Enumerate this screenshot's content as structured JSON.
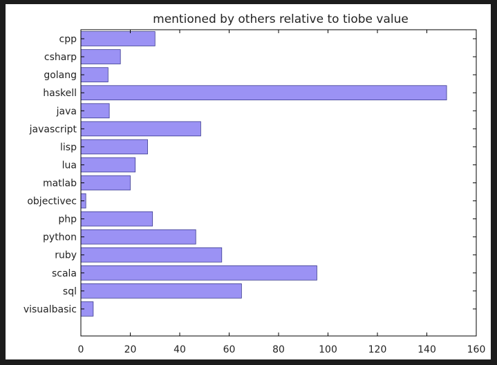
{
  "chart_data": {
    "type": "bar",
    "orientation": "horizontal",
    "title": "mentioned by others relative to tiobe value",
    "xlabel": "",
    "ylabel": "",
    "categories": [
      "cpp",
      "csharp",
      "golang",
      "haskell",
      "java",
      "javascript",
      "lisp",
      "lua",
      "matlab",
      "objectivec",
      "php",
      "python",
      "ruby",
      "scala",
      "sql",
      "visualbasic"
    ],
    "values": [
      30,
      16,
      11,
      148,
      11.5,
      48.5,
      27,
      22,
      20,
      2,
      29,
      46.5,
      57,
      95.5,
      65,
      5
    ],
    "xlim": [
      0,
      160
    ],
    "xticks": [
      0,
      20,
      40,
      60,
      80,
      100,
      120,
      140,
      160
    ],
    "grid": false,
    "legend": "none",
    "colors": {
      "bar_fill": "#9b92f4",
      "bar_stroke": "#3b3b8f",
      "frame": "#000000",
      "figure_bg": "#ffffff",
      "border": "#1c1c1c"
    }
  }
}
